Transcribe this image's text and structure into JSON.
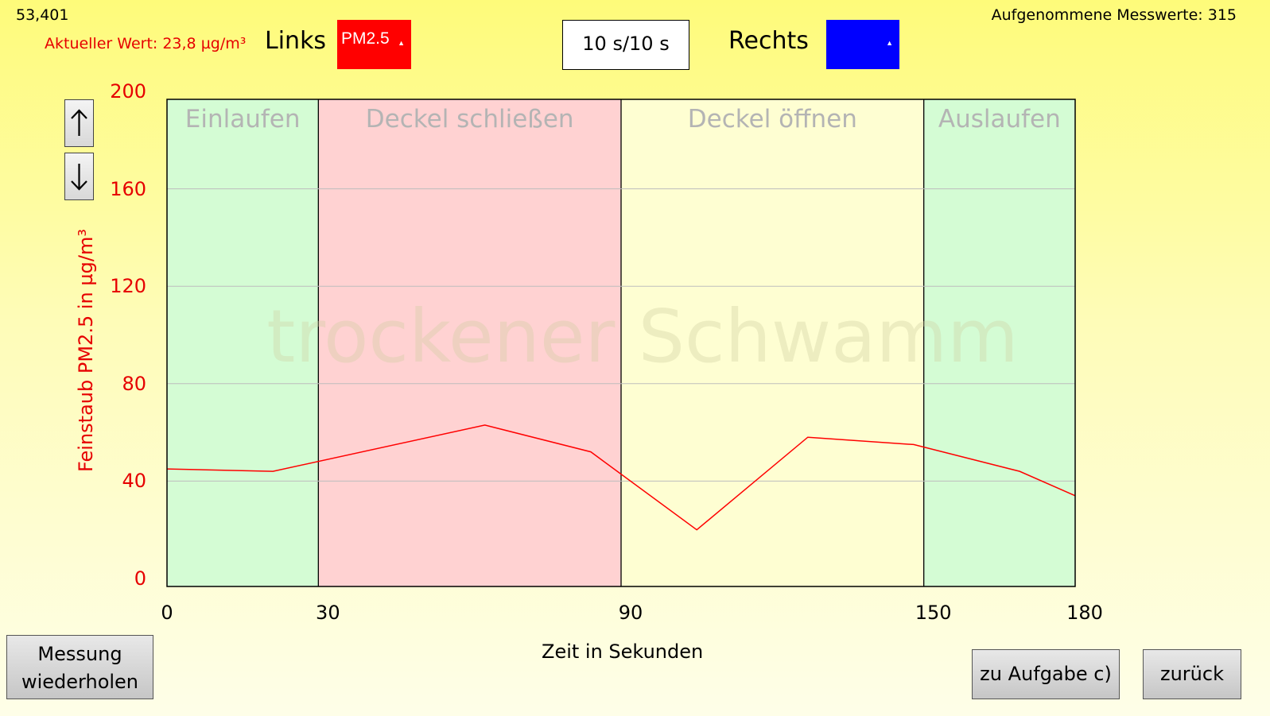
{
  "header": {
    "coordinate": "53,401",
    "recorded_count": "Aufgenommene Messwerte: 315",
    "current_value": "Aktueller Wert: 23,8 µg/m³",
    "left_label": "Links",
    "left_select_value": "PM2.5",
    "right_label": "Rechts",
    "right_select_value": "",
    "interval": "10 s/10 s"
  },
  "colors": {
    "left_series": "#ff0000",
    "right_series": "#0000ff",
    "phase_green": "#d4fcd4",
    "phase_red": "#ffd2d2",
    "phase_yellow": "#fefed2"
  },
  "icons": {
    "scale_up": "arrow-up-icon",
    "scale_down": "arrow-down-icon"
  },
  "chart_data": {
    "type": "line",
    "title": "trockener Schwamm",
    "xlabel": "Zeit in Sekunden",
    "ylabel": "Feinstaub PM2.5 in µg/m³",
    "xlim": [
      0,
      180
    ],
    "ylim": [
      0,
      200
    ],
    "x_ticks": [
      0,
      30,
      90,
      150,
      180
    ],
    "y_ticks": [
      0,
      40,
      80,
      120,
      160,
      200
    ],
    "grid": true,
    "phases": [
      {
        "label": "Einlaufen",
        "from": 0,
        "to": 30,
        "color": "#d4fcd4"
      },
      {
        "label": "Deckel schließen",
        "from": 30,
        "to": 90,
        "color": "#ffd2d2"
      },
      {
        "label": "Deckel öffnen",
        "from": 90,
        "to": 150,
        "color": "#fefed2"
      },
      {
        "label": "Auslaufen",
        "from": 150,
        "to": 180,
        "color": "#d4fcd4"
      }
    ],
    "series": [
      {
        "color": "#ff0000",
        "x": [
          0,
          21,
          63,
          84,
          105,
          127,
          148,
          169,
          180
        ],
        "y": [
          45,
          44,
          63,
          52,
          20,
          58,
          55,
          44,
          34
        ]
      }
    ]
  },
  "buttons": {
    "repeat_line1": "Messung",
    "repeat_line2": "wiederholen",
    "next": "zu Aufgabe c)",
    "back": "zurück"
  }
}
